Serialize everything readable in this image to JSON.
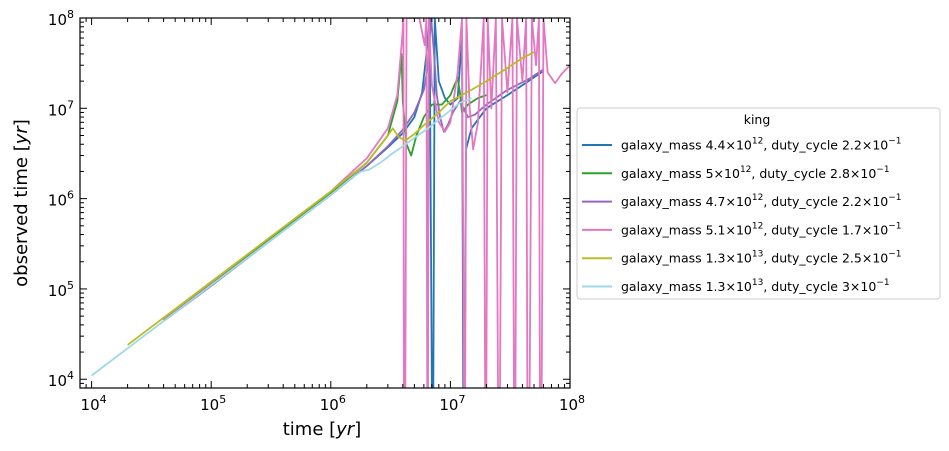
{
  "chart_data": {
    "type": "line",
    "title": "",
    "xlabel": "time [yr]",
    "ylabel": "observed time [yr]",
    "xscale": "log",
    "yscale": "log",
    "xlim": [
      8000,
      100000000
    ],
    "ylim": [
      8000,
      100000000
    ],
    "xticks": [
      {
        "value": 10000,
        "base": "10",
        "exp": "4"
      },
      {
        "value": 100000,
        "base": "10",
        "exp": "5"
      },
      {
        "value": 1000000,
        "base": "10",
        "exp": "6"
      },
      {
        "value": 10000000,
        "base": "10",
        "exp": "7"
      },
      {
        "value": 100000000,
        "base": "10",
        "exp": "8"
      }
    ],
    "yticks": [
      {
        "value": 10000,
        "base": "10",
        "exp": "4"
      },
      {
        "value": 100000,
        "base": "10",
        "exp": "5"
      },
      {
        "value": 1000000,
        "base": "10",
        "exp": "6"
      },
      {
        "value": 10000000,
        "base": "10",
        "exp": "7"
      },
      {
        "value": 100000000,
        "base": "10",
        "exp": "8"
      }
    ],
    "grid": false,
    "legend_title": "king",
    "legend_position": "outside right",
    "series": [
      {
        "name": "galaxy_mass 4.4×10^12, duty_cycle 2.2×10^-1",
        "legend": {
          "a": "galaxy_mass 4.4×10",
          "ae": "12",
          "b": ", duty_cycle 2.2×10",
          "be": "−1"
        },
        "color": "#1f77b4",
        "points": [
          [
            40000,
            45000
          ],
          [
            100000,
            110000
          ],
          [
            300000,
            330000
          ],
          [
            1000000,
            1100000
          ],
          [
            2000000,
            2300000
          ],
          [
            3000000,
            3700000
          ],
          [
            4000000,
            5300000
          ],
          [
            5000000,
            8000000
          ],
          [
            5800000,
            15000000
          ],
          [
            6300000,
            40000000
          ],
          [
            6700000,
            100000000
          ],
          [
            7000000,
            8000
          ],
          [
            7200000,
            8000
          ],
          [
            7400000,
            100000000
          ],
          [
            8000000,
            20000000
          ],
          [
            9000000,
            13000000
          ],
          [
            10000000,
            11000000
          ],
          [
            11500000,
            13000000
          ],
          [
            12500000,
            60000000
          ],
          [
            12800000,
            8000
          ],
          [
            13200000,
            8000
          ],
          [
            13500000,
            3500000
          ],
          [
            15000000,
            6000000
          ],
          [
            20000000,
            10000000
          ],
          [
            30000000,
            14000000
          ],
          [
            45000000,
            20000000
          ],
          [
            60000000,
            26000000
          ]
        ]
      },
      {
        "name": "galaxy_mass 5×10^12, duty_cycle 2.8×10^-1",
        "legend": {
          "a": "galaxy_mass 5×10",
          "ae": "12",
          "b": ", duty_cycle 2.8×10",
          "be": "−1"
        },
        "color": "#2ca02c",
        "points": [
          [
            40000,
            46000
          ],
          [
            100000,
            115000
          ],
          [
            300000,
            350000
          ],
          [
            1000000,
            1150000
          ],
          [
            2000000,
            2500000
          ],
          [
            3000000,
            5000000
          ],
          [
            3600000,
            12000000
          ],
          [
            3900000,
            40000000
          ],
          [
            4000000,
            12000000
          ],
          [
            4300000,
            4000000
          ],
          [
            4700000,
            3000000
          ],
          [
            5200000,
            5000000
          ],
          [
            6000000,
            8000000
          ],
          [
            7000000,
            11000000
          ],
          [
            8500000,
            11000000
          ],
          [
            10000000,
            14000000
          ],
          [
            11500000,
            22000000
          ],
          [
            12000000,
            15000000
          ],
          [
            12500000,
            9000000
          ],
          [
            14000000,
            11000000
          ],
          [
            17000000,
            13000000
          ],
          [
            20000000,
            14000000
          ]
        ]
      },
      {
        "name": "galaxy_mass 4.7×10^12, duty_cycle 2.2×10^-1",
        "legend": {
          "a": "galaxy_mass 4.7×10",
          "ae": "12",
          "b": ", duty_cycle 2.2×10",
          "be": "−1"
        },
        "color": "#9467bd",
        "points": [
          [
            40000,
            44000
          ],
          [
            100000,
            108000
          ],
          [
            300000,
            330000
          ],
          [
            1000000,
            1100000
          ],
          [
            2000000,
            2300000
          ],
          [
            3000000,
            3800000
          ],
          [
            4000000,
            5800000
          ],
          [
            5000000,
            9000000
          ],
          [
            6000000,
            16000000
          ],
          [
            6500000,
            30000000
          ],
          [
            6900000,
            100000000
          ],
          [
            7300000,
            40000000
          ],
          [
            7700000,
            14000000
          ],
          [
            8200000,
            8000000
          ],
          [
            8800000,
            5500000
          ],
          [
            9500000,
            6500000
          ],
          [
            10500000,
            9000000
          ],
          [
            12000000,
            12000000
          ],
          [
            14000000,
            8000000
          ],
          [
            16000000,
            8500000
          ],
          [
            20000000,
            11000000
          ],
          [
            30000000,
            16000000
          ],
          [
            45000000,
            21000000
          ],
          [
            60000000,
            27000000
          ]
        ]
      },
      {
        "name": "galaxy_mass 5.1×10^12, duty_cycle 1.7×10^-1",
        "legend": {
          "a": "galaxy_mass 5.1×10",
          "ae": "12",
          "b": ", duty_cycle 1.7×10",
          "be": "−1"
        },
        "color": "#e377c2",
        "points": [
          [
            40000,
            47000
          ],
          [
            100000,
            118000
          ],
          [
            300000,
            360000
          ],
          [
            1000000,
            1200000
          ],
          [
            2000000,
            2800000
          ],
          [
            3000000,
            6000000
          ],
          [
            3600000,
            14000000
          ],
          [
            3950000,
            60000000
          ],
          [
            4050000,
            100000000
          ],
          [
            4080000,
            8000
          ],
          [
            4200000,
            8000
          ],
          [
            4300000,
            100000000
          ],
          [
            5500000,
            100000000
          ],
          [
            6100000,
            50000000
          ],
          [
            6300000,
            100000000
          ],
          [
            6400000,
            8000
          ],
          [
            6500000,
            8000
          ],
          [
            6600000,
            100000000
          ],
          [
            7000000,
            18000000
          ],
          [
            8000000,
            7000000
          ],
          [
            9000000,
            5500000
          ],
          [
            10000000,
            7000000
          ],
          [
            11500000,
            25000000
          ],
          [
            12500000,
            100000000
          ],
          [
            13000000,
            8000
          ],
          [
            13300000,
            8000
          ],
          [
            13600000,
            100000000
          ],
          [
            14500000,
            10000000
          ],
          [
            15500000,
            3500000
          ],
          [
            17000000,
            7000000
          ],
          [
            19000000,
            100000000
          ],
          [
            19500000,
            8000
          ],
          [
            20000000,
            8000
          ],
          [
            20500000,
            100000000
          ],
          [
            22000000,
            10000000
          ],
          [
            24000000,
            100000000
          ],
          [
            25000000,
            8000
          ],
          [
            26000000,
            8000
          ],
          [
            27000000,
            100000000
          ],
          [
            30000000,
            15000000
          ],
          [
            33000000,
            100000000
          ],
          [
            34000000,
            8000
          ],
          [
            35000000,
            8000
          ],
          [
            36000000,
            100000000
          ],
          [
            40000000,
            20000000
          ],
          [
            43000000,
            100000000
          ],
          [
            44000000,
            8000
          ],
          [
            46000000,
            8000
          ],
          [
            48000000,
            100000000
          ],
          [
            52000000,
            30000000
          ],
          [
            55000000,
            100000000
          ],
          [
            56000000,
            8000
          ],
          [
            58000000,
            8000
          ],
          [
            60000000,
            100000000
          ],
          [
            65000000,
            25000000
          ],
          [
            75000000,
            19000000
          ],
          [
            85000000,
            24000000
          ],
          [
            100000000,
            30000000
          ]
        ]
      },
      {
        "name": "galaxy_mass 1.3×10^13, duty_cycle 2.5×10^-1",
        "legend": {
          "a": "galaxy_mass 1.3×10",
          "ae": "13",
          "b": ", duty_cycle 2.5×10",
          "be": "−1"
        },
        "color": "#bcbd22",
        "points": [
          [
            20000,
            24000
          ],
          [
            50000,
            60000
          ],
          [
            100000,
            120000
          ],
          [
            300000,
            360000
          ],
          [
            1000000,
            1200000
          ],
          [
            2000000,
            2500000
          ],
          [
            3000000,
            5000000
          ],
          [
            3300000,
            6000000
          ],
          [
            3700000,
            4800000
          ],
          [
            4200000,
            4400000
          ],
          [
            5000000,
            5200000
          ],
          [
            6000000,
            6500000
          ],
          [
            8000000,
            9000000
          ],
          [
            10000000,
            12000000
          ],
          [
            15000000,
            16000000
          ],
          [
            20000000,
            20000000
          ],
          [
            30000000,
            28000000
          ],
          [
            40000000,
            36000000
          ],
          [
            50000000,
            42000000
          ]
        ]
      },
      {
        "name": "galaxy_mass 1.3×10^13, duty_cycle 3×10^-1",
        "legend": {
          "a": "galaxy_mass 1.3×10",
          "ae": "13",
          "b": ", duty_cycle 3×10",
          "be": "−1"
        },
        "color": "#9edae5",
        "points": [
          [
            10000,
            11000
          ],
          [
            20000,
            22000
          ],
          [
            50000,
            55000
          ],
          [
            100000,
            110000
          ],
          [
            300000,
            330000
          ],
          [
            1000000,
            1100000
          ],
          [
            1500000,
            1700000
          ],
          [
            1800000,
            2000000
          ],
          [
            2100000,
            2100000
          ],
          [
            2600000,
            2500000
          ],
          [
            3200000,
            3100000
          ],
          [
            4000000,
            3800000
          ],
          [
            5000000,
            4700000
          ],
          [
            6500000,
            6000000
          ],
          [
            8000000,
            7500000
          ],
          [
            10000000,
            9500000
          ],
          [
            12000000,
            11500000
          ],
          [
            15000000,
            13000000
          ]
        ]
      }
    ]
  }
}
